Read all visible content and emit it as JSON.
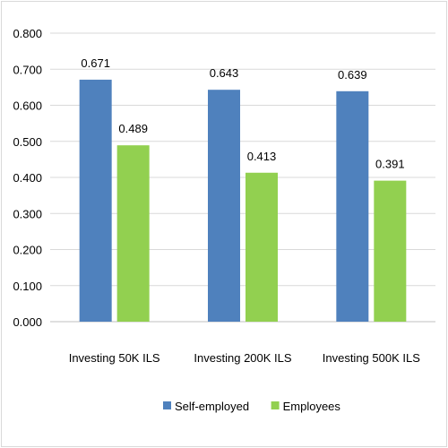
{
  "chart_data": {
    "type": "bar",
    "title": "",
    "xlabel": "",
    "ylabel": "",
    "categories": [
      "Investing 50K ILS",
      "Investing 200K ILS",
      "Investing 500K ILS"
    ],
    "series": [
      {
        "name": "Self-employed",
        "values": [
          0.671,
          0.643,
          0.639
        ],
        "color": "#4f81bd"
      },
      {
        "name": "Employees",
        "values": [
          0.489,
          0.413,
          0.391
        ],
        "color": "#92d050"
      }
    ],
    "ylim": [
      0,
      0.8
    ],
    "yticks": [
      "0.000",
      "0.100",
      "0.200",
      "0.300",
      "0.400",
      "0.500",
      "0.600",
      "0.700",
      "0.800"
    ],
    "data_labels": true,
    "grid": true,
    "legend_position": "bottom"
  }
}
